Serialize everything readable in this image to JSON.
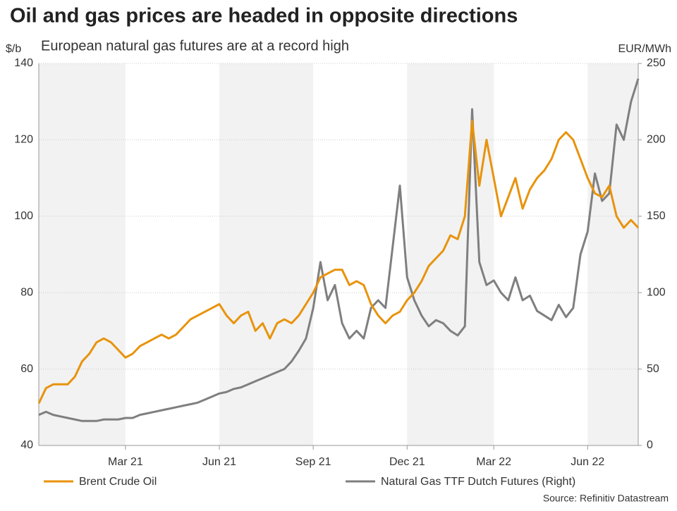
{
  "chart_data": {
    "type": "line",
    "title": "Oil and gas prices are headed in opposite directions",
    "subtitle": "European natural gas futures are at a record high",
    "y_label": "$/b",
    "y2_label": "EUR/MWh",
    "source": "Source: Refinitiv Datastream",
    "categories": [
      null,
      null,
      null,
      null,
      null,
      null,
      null,
      null,
      null,
      null,
      null,
      null,
      "Mar 21",
      null,
      null,
      null,
      null,
      null,
      null,
      null,
      null,
      null,
      null,
      null,
      null,
      "Jun 21",
      null,
      null,
      null,
      null,
      null,
      null,
      null,
      null,
      null,
      null,
      null,
      null,
      "Sep 21",
      null,
      null,
      null,
      null,
      null,
      null,
      null,
      null,
      null,
      null,
      null,
      null,
      "Dec 21",
      null,
      null,
      null,
      null,
      null,
      null,
      null,
      null,
      null,
      null,
      null,
      "Mar 22",
      null,
      null,
      null,
      null,
      null,
      null,
      null,
      null,
      null,
      null,
      null,
      null,
      "Jun 22",
      null,
      null,
      null,
      null,
      null,
      null,
      null
    ],
    "series": [
      {
        "name": "Brent Crude Oil",
        "color": "#e8930c",
        "values": [
          51,
          55,
          56,
          56,
          56,
          58,
          62,
          64,
          67,
          68,
          67,
          65,
          63,
          64,
          66,
          67,
          68,
          69,
          68,
          69,
          71,
          73,
          74,
          75,
          76,
          77,
          74,
          72,
          74,
          75,
          70,
          72,
          68,
          72,
          73,
          72,
          74,
          77,
          80,
          84,
          85,
          86,
          86,
          82,
          83,
          82,
          77,
          74,
          72,
          74,
          75,
          78,
          80,
          83,
          87,
          89,
          91,
          95,
          94,
          100,
          125,
          108,
          120,
          110,
          100,
          105,
          110,
          102,
          107,
          110,
          112,
          115,
          120,
          122,
          120,
          115,
          110,
          106,
          105,
          108,
          100,
          97,
          99,
          97
        ]
      },
      {
        "name": "Natural Gas TTF Dutch Futures (Right)",
        "color": "#7f7f7f",
        "axis": "y2",
        "values": [
          20,
          22,
          20,
          19,
          18,
          17,
          16,
          16,
          16,
          17,
          17,
          17,
          18,
          18,
          20,
          21,
          22,
          23,
          24,
          25,
          26,
          27,
          28,
          30,
          32,
          34,
          35,
          37,
          38,
          40,
          42,
          44,
          46,
          48,
          50,
          55,
          62,
          70,
          90,
          120,
          95,
          105,
          80,
          70,
          75,
          70,
          90,
          95,
          90,
          130,
          170,
          110,
          95,
          85,
          78,
          82,
          80,
          75,
          72,
          78,
          220,
          120,
          105,
          108,
          100,
          95,
          110,
          95,
          98,
          88,
          85,
          82,
          92,
          84,
          90,
          125,
          140,
          178,
          160,
          165,
          210,
          200,
          225,
          240
        ]
      }
    ],
    "ylim": [
      40,
      140
    ],
    "yticks": [
      40,
      60,
      80,
      100,
      120,
      140
    ],
    "y2lim": [
      0,
      250
    ],
    "y2ticks": [
      0,
      50,
      100,
      150,
      200,
      250
    ],
    "grid": true
  }
}
